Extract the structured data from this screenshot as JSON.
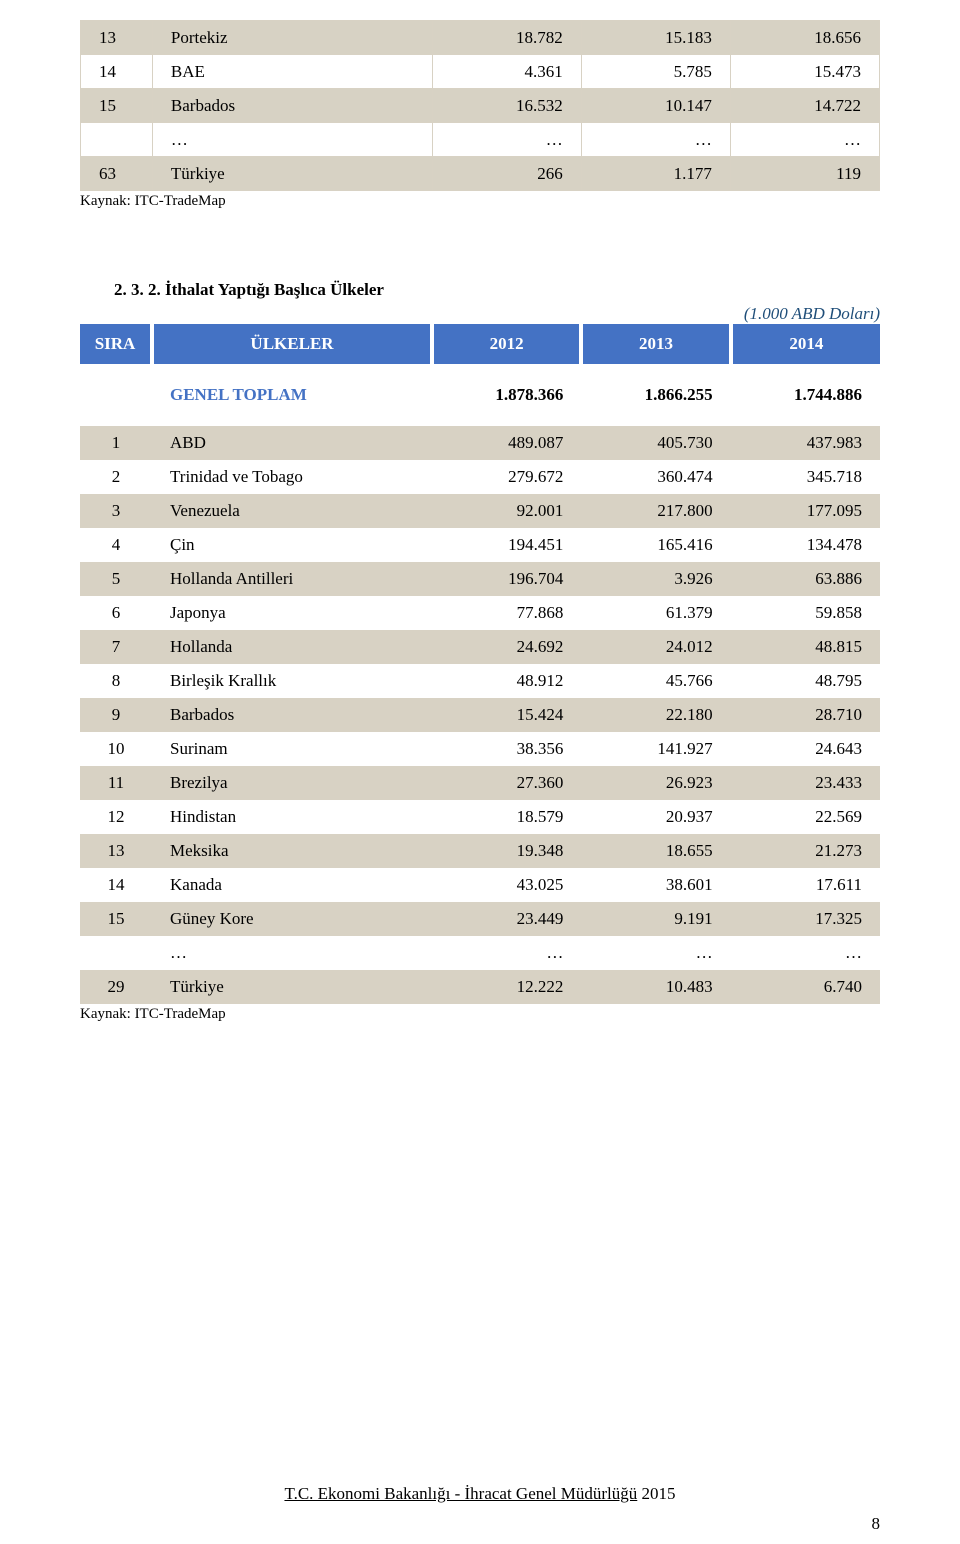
{
  "table1": {
    "rows": [
      {
        "rank": "13",
        "name": "Portekiz",
        "v1": "18.782",
        "v2": "15.183",
        "v3": "18.656",
        "shaded": true
      },
      {
        "rank": "14",
        "name": "BAE",
        "v1": "4.361",
        "v2": "5.785",
        "v3": "15.473",
        "shaded": false
      },
      {
        "rank": "15",
        "name": "Barbados",
        "v1": "16.532",
        "v2": "10.147",
        "v3": "14.722",
        "shaded": true
      },
      {
        "rank": "",
        "name": "…",
        "v1": "…",
        "v2": "…",
        "v3": "…",
        "shaded": false
      },
      {
        "rank": "63",
        "name": "Türkiye",
        "v1": "266",
        "v2": "1.177",
        "v3": "119",
        "shaded": true
      }
    ]
  },
  "source1": "Kaynak: ITC-TradeMap",
  "section_title": "2. 3. 2. İthalat Yaptığı Başlıca Ülkeler",
  "unit_note": "(1.000 ABD Doları)",
  "table2": {
    "headers": {
      "rank": "SIRA",
      "name": "ÜLKELER",
      "v1": "2012",
      "v2": "2013",
      "v3": "2014"
    },
    "total": {
      "name": "GENEL TOPLAM",
      "v1": "1.878.366",
      "v2": "1.866.255",
      "v3": "1.744.886"
    },
    "rows": [
      {
        "rank": "1",
        "name": "ABD",
        "v1": "489.087",
        "v2": "405.730",
        "v3": "437.983",
        "shaded": true
      },
      {
        "rank": "2",
        "name": "Trinidad ve Tobago",
        "v1": "279.672",
        "v2": "360.474",
        "v3": "345.718",
        "shaded": false
      },
      {
        "rank": "3",
        "name": "Venezuela",
        "v1": "92.001",
        "v2": "217.800",
        "v3": "177.095",
        "shaded": true
      },
      {
        "rank": "4",
        "name": "Çin",
        "v1": "194.451",
        "v2": "165.416",
        "v3": "134.478",
        "shaded": false
      },
      {
        "rank": "5",
        "name": "Hollanda Antilleri",
        "v1": "196.704",
        "v2": "3.926",
        "v3": "63.886",
        "shaded": true
      },
      {
        "rank": "6",
        "name": "Japonya",
        "v1": "77.868",
        "v2": "61.379",
        "v3": "59.858",
        "shaded": false
      },
      {
        "rank": "7",
        "name": "Hollanda",
        "v1": "24.692",
        "v2": "24.012",
        "v3": "48.815",
        "shaded": true
      },
      {
        "rank": "8",
        "name": "Birleşik Krallık",
        "v1": "48.912",
        "v2": "45.766",
        "v3": "48.795",
        "shaded": false
      },
      {
        "rank": "9",
        "name": "Barbados",
        "v1": "15.424",
        "v2": "22.180",
        "v3": "28.710",
        "shaded": true
      },
      {
        "rank": "10",
        "name": "Surinam",
        "v1": "38.356",
        "v2": "141.927",
        "v3": "24.643",
        "shaded": false
      },
      {
        "rank": "11",
        "name": "Brezilya",
        "v1": "27.360",
        "v2": "26.923",
        "v3": "23.433",
        "shaded": true
      },
      {
        "rank": "12",
        "name": "Hindistan",
        "v1": "18.579",
        "v2": "20.937",
        "v3": "22.569",
        "shaded": false
      },
      {
        "rank": "13",
        "name": "Meksika",
        "v1": "19.348",
        "v2": "18.655",
        "v3": "21.273",
        "shaded": true
      },
      {
        "rank": "14",
        "name": "Kanada",
        "v1": "43.025",
        "v2": "38.601",
        "v3": "17.611",
        "shaded": false
      },
      {
        "rank": "15",
        "name": "Güney Kore",
        "v1": "23.449",
        "v2": "9.191",
        "v3": "17.325",
        "shaded": true
      },
      {
        "rank": "",
        "name": "…",
        "v1": "…",
        "v2": "…",
        "v3": "…",
        "shaded": false
      },
      {
        "rank": "29",
        "name": "Türkiye",
        "v1": "12.222",
        "v2": "10.483",
        "v3": "6.740",
        "shaded": true
      }
    ]
  },
  "source2": "Kaynak: ITC-TradeMap",
  "footer": {
    "org": "T.C. Ekonomi Bakanlığı - İhracat Genel Müdürlüğü",
    "year": "2015"
  },
  "page_num": "8"
}
